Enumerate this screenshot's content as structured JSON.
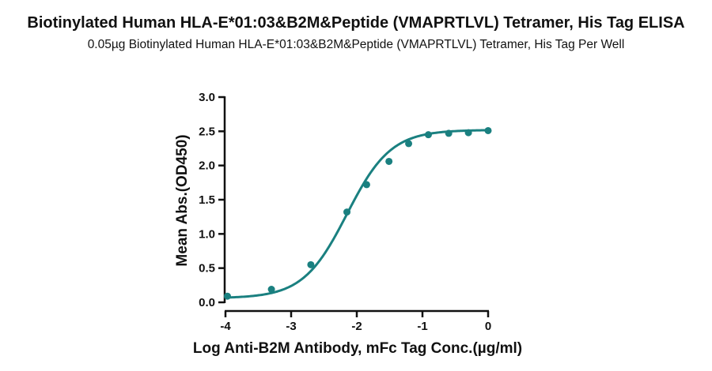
{
  "header": {
    "title": "Biotinylated Human HLA-E*01:03&B2M&Peptide (VMAPRTLVL) Tetramer, His Tag ELISA",
    "subtitle": "0.05µg Biotinylated Human HLA-E*01:03&B2M&Peptide (VMAPRTLVL) Tetramer, His Tag Per Well"
  },
  "chart_data": {
    "type": "scatter",
    "title": "Biotinylated Human HLA-E*01:03&B2M&Peptide (VMAPRTLVL) Tetramer, His Tag ELISA",
    "subtitle": "0.05µg Biotinylated Human HLA-E*01:03&B2M&Peptide (VMAPRTLVL) Tetramer, His Tag Per Well",
    "xlabel": "Log Anti-B2M Antibody, mFc Tag Conc.(µg/ml)",
    "ylabel": "Mean Abs.(OD450)",
    "xlim": [
      -4,
      0
    ],
    "ylim": [
      0,
      3.0
    ],
    "xticks": [
      "-4",
      "-3",
      "-2",
      "-1",
      "0"
    ],
    "yticks": [
      "0.0",
      "0.5",
      "1.0",
      "1.5",
      "2.0",
      "2.5",
      "3.0"
    ],
    "grid": false,
    "series": [
      {
        "x": [
          -3.97,
          -3.3,
          -2.7,
          -2.15,
          -1.85,
          -1.51,
          -1.21,
          -0.91,
          -0.6,
          -0.3,
          0.0
        ],
        "values": [
          0.09,
          0.19,
          0.55,
          1.32,
          1.72,
          2.06,
          2.32,
          2.45,
          2.47,
          2.48,
          2.51
        ],
        "fit": "four-parameter logistic",
        "color": "#1a8080"
      }
    ],
    "fit_params": {
      "bottom": 0.06,
      "top": 2.52,
      "logEC50": -2.15,
      "hill": 1.3
    }
  }
}
